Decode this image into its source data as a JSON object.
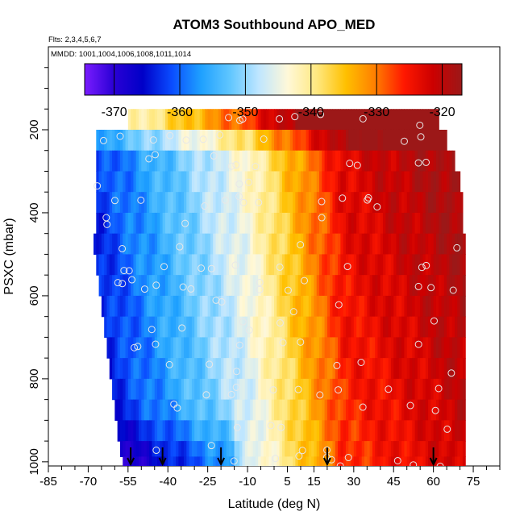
{
  "chart_data": {
    "type": "heatmap",
    "title": "ATOM3 Southbound APO_MED",
    "notes": {
      "flights": "Flts: 2,3,4,5,6,7",
      "dates": "MMDD: 1001,1004,1006,1008,1011,1014"
    },
    "xlabel": "Latitude (deg N)",
    "ylabel": "PSXC (mbar)",
    "xlim": [
      -85,
      85
    ],
    "ylim": [
      1010,
      0
    ],
    "x_ticks": [
      -85,
      -70,
      -55,
      -40,
      -25,
      -10,
      5,
      15,
      30,
      45,
      60,
      75
    ],
    "y_ticks": [
      200,
      400,
      600,
      800,
      1000
    ],
    "colorbar": {
      "range": [
        -374.5,
        -317
      ],
      "ticks": [
        -370,
        -360,
        -350,
        -340,
        -330,
        -320
      ],
      "colors": [
        "#7a1cff",
        "#2a00d5",
        "#0000c8",
        "#0a4cff",
        "#1ea0ff",
        "#5fc6ff",
        "#bfe6ff",
        "#fff8d8",
        "#ffe880",
        "#ffc000",
        "#ff7f00",
        "#ff1800",
        "#cc0000",
        "#9c1818"
      ]
    },
    "pressure_levels": [
      175,
      225,
      275,
      325,
      375,
      425,
      475,
      525,
      575,
      625,
      675,
      725,
      775,
      825,
      875,
      925,
      975,
      1000
    ],
    "latitude_extent": {
      "south_edge": [
        -55,
        -67,
        -67,
        -67,
        -67,
        -67,
        -68,
        -67,
        -66,
        -65,
        -64,
        -63,
        -62,
        -61,
        -60,
        -59,
        -58,
        -57
      ],
      "north_edge": [
        62,
        65,
        68,
        70,
        71,
        71,
        72,
        72,
        72,
        72,
        72,
        72,
        72,
        72,
        72,
        72,
        72,
        72
      ]
    },
    "profile_latitudes": [
      -54,
      -42,
      -20,
      20,
      60
    ]
  }
}
